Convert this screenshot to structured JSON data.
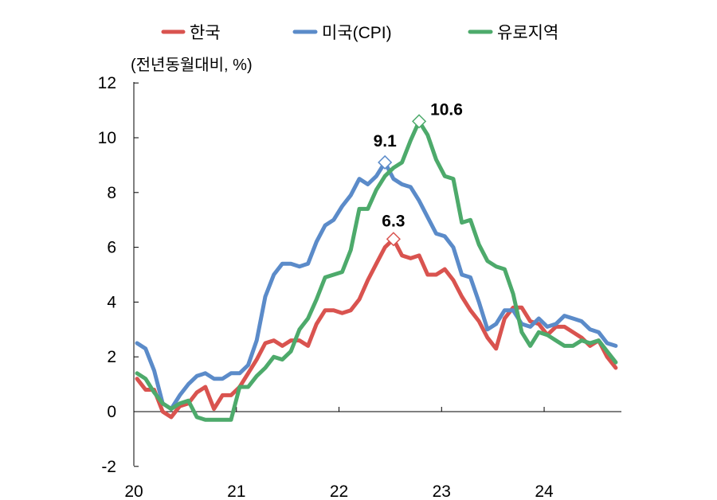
{
  "chart_data": {
    "type": "line",
    "unit_label": "(전년동월대비, %)",
    "ylim": [
      -2,
      12
    ],
    "yticks": [
      -2,
      0,
      2,
      4,
      6,
      8,
      10,
      12
    ],
    "xticks": [
      {
        "label": "20",
        "month": 0
      },
      {
        "label": "21",
        "month": 12
      },
      {
        "label": "22",
        "month": 24
      },
      {
        "label": "23",
        "month": 36
      },
      {
        "label": "24",
        "month": 48
      }
    ],
    "x_end_month": 57,
    "legend_position": "top",
    "series": [
      {
        "name": "한국",
        "color": "#d9534f",
        "values": [
          1.2,
          0.8,
          0.8,
          0.0,
          -0.2,
          0.2,
          0.3,
          0.7,
          0.9,
          0.1,
          0.6,
          0.6,
          0.9,
          1.4,
          1.9,
          2.5,
          2.6,
          2.4,
          2.6,
          2.6,
          2.4,
          3.2,
          3.7,
          3.7,
          3.6,
          3.7,
          4.1,
          4.8,
          5.4,
          6.0,
          6.3,
          5.7,
          5.6,
          5.7,
          5.0,
          5.0,
          5.2,
          4.8,
          4.2,
          3.7,
          3.3,
          2.7,
          2.3,
          3.4,
          3.8,
          3.8,
          3.3,
          3.2,
          2.8,
          3.1,
          3.1,
          2.9,
          2.7,
          2.4,
          2.6,
          2.0,
          1.6
        ],
        "peak": {
          "index": 30,
          "value": 6.3,
          "label": "6.3"
        }
      },
      {
        "name": "미국(CPI)",
        "color": "#5b8bc9",
        "values": [
          2.5,
          2.3,
          1.5,
          0.3,
          0.1,
          0.6,
          1.0,
          1.3,
          1.4,
          1.2,
          1.2,
          1.4,
          1.4,
          1.7,
          2.6,
          4.2,
          5.0,
          5.4,
          5.4,
          5.3,
          5.4,
          6.2,
          6.8,
          7.0,
          7.5,
          7.9,
          8.5,
          8.3,
          8.6,
          9.1,
          8.5,
          8.3,
          8.2,
          7.7,
          7.1,
          6.5,
          6.4,
          6.0,
          5.0,
          4.9,
          4.0,
          3.0,
          3.2,
          3.7,
          3.7,
          3.2,
          3.1,
          3.4,
          3.1,
          3.2,
          3.5,
          3.4,
          3.3,
          3.0,
          2.9,
          2.5,
          2.4
        ],
        "peak": {
          "index": 29,
          "value": 9.1,
          "label": "9.1"
        }
      },
      {
        "name": "유로지역",
        "color": "#4daa6b",
        "values": [
          1.4,
          1.2,
          0.7,
          0.3,
          0.1,
          0.3,
          0.4,
          -0.2,
          -0.3,
          -0.3,
          -0.3,
          -0.3,
          0.9,
          0.9,
          1.3,
          1.6,
          2.0,
          1.9,
          2.2,
          3.0,
          3.4,
          4.1,
          4.9,
          5.0,
          5.1,
          5.9,
          7.4,
          7.4,
          8.1,
          8.6,
          8.9,
          9.1,
          9.9,
          10.6,
          10.1,
          9.2,
          8.6,
          8.5,
          6.9,
          7.0,
          6.1,
          5.5,
          5.3,
          5.2,
          4.3,
          2.9,
          2.4,
          2.9,
          2.8,
          2.6,
          2.4,
          2.4,
          2.6,
          2.5,
          2.6,
          2.2,
          1.8
        ],
        "peak": {
          "index": 33,
          "value": 10.6,
          "label": "10.6"
        }
      }
    ]
  }
}
